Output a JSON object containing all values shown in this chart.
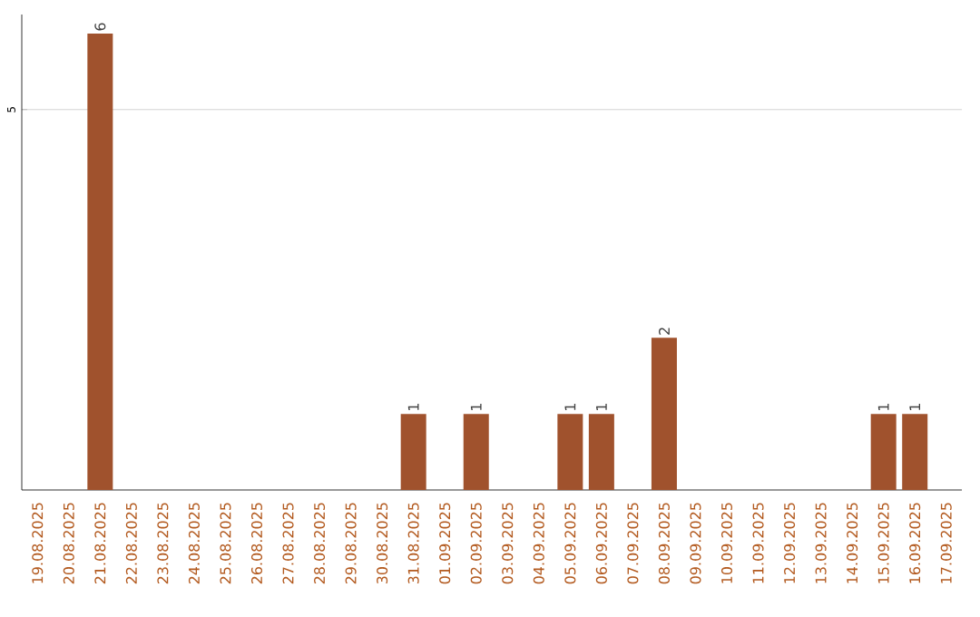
{
  "chart_data": {
    "type": "bar",
    "categories": [
      "19.08.2025",
      "20.08.2025",
      "21.08.2025",
      "22.08.2025",
      "23.08.2025",
      "24.08.2025",
      "25.08.2025",
      "26.08.2025",
      "27.08.2025",
      "28.08.2025",
      "29.08.2025",
      "30.08.2025",
      "31.08.2025",
      "01.09.2025",
      "02.09.2025",
      "03.09.2025",
      "04.09.2025",
      "05.09.2025",
      "06.09.2025",
      "07.09.2025",
      "08.09.2025",
      "09.09.2025",
      "10.09.2025",
      "11.09.2025",
      "12.09.2025",
      "13.09.2025",
      "14.09.2025",
      "15.09.2025",
      "16.09.2025",
      "17.09.2025"
    ],
    "values": [
      0,
      0,
      6,
      0,
      0,
      0,
      0,
      0,
      0,
      0,
      0,
      0,
      1,
      0,
      1,
      0,
      0,
      1,
      1,
      0,
      2,
      0,
      0,
      0,
      0,
      0,
      0,
      1,
      1,
      0
    ],
    "value_labels": [
      null,
      null,
      "6",
      null,
      null,
      null,
      null,
      null,
      null,
      null,
      null,
      null,
      "1",
      null,
      "1",
      null,
      null,
      "1",
      "1",
      null,
      "2",
      null,
      null,
      null,
      null,
      null,
      null,
      "1",
      "1",
      null
    ],
    "color": "#a0522d",
    "ylim": [
      0,
      6.25
    ],
    "yticks": [
      5
    ],
    "grid": "y"
  }
}
